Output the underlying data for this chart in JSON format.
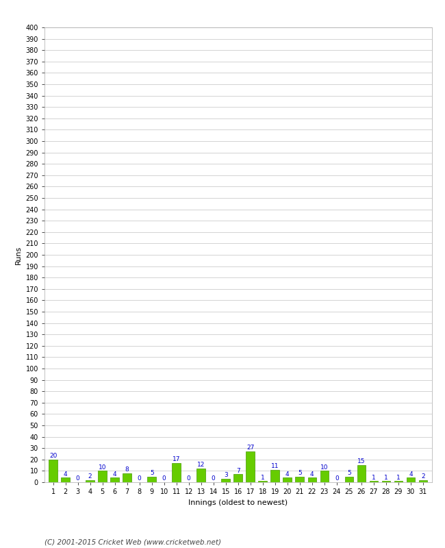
{
  "innings": [
    1,
    2,
    3,
    4,
    5,
    6,
    7,
    8,
    9,
    10,
    11,
    12,
    13,
    14,
    15,
    16,
    17,
    18,
    19,
    20,
    21,
    22,
    23,
    24,
    25,
    26,
    27,
    28,
    29,
    30,
    31
  ],
  "runs": [
    20,
    4,
    0,
    2,
    10,
    4,
    8,
    0,
    5,
    0,
    17,
    0,
    12,
    0,
    3,
    7,
    27,
    1,
    11,
    4,
    5,
    4,
    10,
    0,
    5,
    15,
    1,
    1,
    1,
    4,
    2
  ],
  "bar_color": "#66cc00",
  "bar_edge_color": "#449900",
  "label_color": "#0000cc",
  "ylabel": "Runs",
  "xlabel": "Innings (oldest to newest)",
  "yticks": [
    0,
    10,
    20,
    30,
    40,
    50,
    60,
    70,
    80,
    90,
    100,
    110,
    120,
    130,
    140,
    150,
    160,
    170,
    180,
    190,
    200,
    210,
    220,
    230,
    240,
    250,
    260,
    270,
    280,
    290,
    300,
    310,
    320,
    330,
    340,
    350,
    360,
    370,
    380,
    390,
    400
  ],
  "ylim": [
    0,
    400
  ],
  "background_color": "#ffffff",
  "grid_color": "#cccccc",
  "footer": "(C) 2001-2015 Cricket Web (www.cricketweb.net)",
  "label_fontsize": 6.5,
  "axis_tick_fontsize": 7,
  "axis_label_fontsize": 8,
  "footer_fontsize": 7.5
}
